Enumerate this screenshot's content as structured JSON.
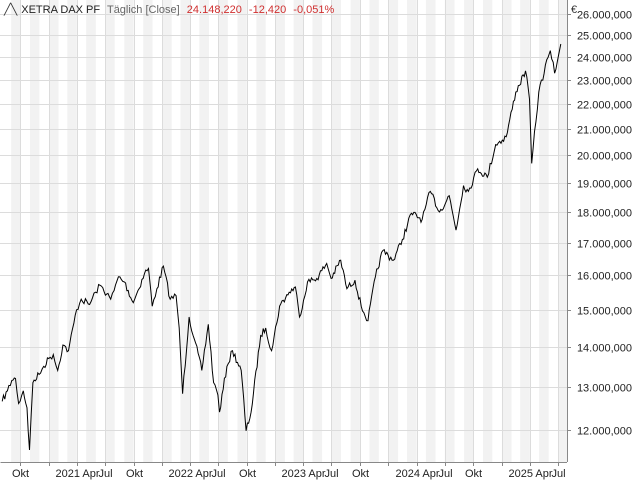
{
  "header": {
    "name": "XETRA DAX PF",
    "interval": "Täglich [Close]",
    "last": "24.148,220",
    "change": "-12,420",
    "change_pct": "-0,051%",
    "change_color": "#d03030"
  },
  "chart_data": {
    "type": "line",
    "currency": "€",
    "x_tick_labels": [
      "Okt",
      "2021 Apr",
      "Jul",
      "Okt",
      "2022 Apr",
      "Jul",
      "Okt",
      "2023 Apr",
      "Jul",
      "Okt",
      "2024 Apr",
      "Jul",
      "Okt",
      "2025 Apr",
      "Jul"
    ],
    "y_tick_labels": [
      "12.000,000",
      "13.000,000",
      "14.000,000",
      "15.000,000",
      "16.000,000",
      "17.000,000",
      "18.000,000",
      "19.000,000",
      "20.000,000",
      "21.000,000",
      "22.000,000",
      "23.000,000",
      "24.000,000",
      "25.000,000",
      "26.000,000"
    ],
    "y_ticks": [
      12000,
      13000,
      14000,
      15000,
      16000,
      17000,
      18000,
      19000,
      20000,
      21000,
      22000,
      23000,
      24000,
      25000,
      26000
    ],
    "ylim": [
      11300,
      26700
    ],
    "y_scale": "log",
    "grid": true,
    "series": [
      {
        "color": "#000000",
        "points": [
          [
            "2020-08-03",
            12650
          ],
          [
            "2020-08-20",
            12900
          ],
          [
            "2020-09-03",
            13150
          ],
          [
            "2020-09-15",
            13200
          ],
          [
            "2020-09-25",
            12600
          ],
          [
            "2020-10-10",
            12900
          ],
          [
            "2020-10-22",
            12500
          ],
          [
            "2020-10-30",
            11556
          ],
          [
            "2020-11-10",
            13100
          ],
          [
            "2020-11-30",
            13300
          ],
          [
            "2020-12-15",
            13500
          ],
          [
            "2020-12-31",
            13700
          ],
          [
            "2021-01-15",
            13800
          ],
          [
            "2021-01-29",
            13400
          ],
          [
            "2021-02-15",
            14050
          ],
          [
            "2021-03-05",
            13900
          ],
          [
            "2021-03-31",
            15000
          ],
          [
            "2021-04-15",
            15300
          ],
          [
            "2021-05-12",
            15150
          ],
          [
            "2021-05-31",
            15500
          ],
          [
            "2021-06-15",
            15700
          ],
          [
            "2021-07-19",
            15300
          ],
          [
            "2021-07-30",
            15550
          ],
          [
            "2021-08-13",
            15950
          ],
          [
            "2021-09-01",
            15800
          ],
          [
            "2021-09-30",
            15200
          ],
          [
            "2021-10-15",
            15550
          ],
          [
            "2021-11-05",
            16050
          ],
          [
            "2021-11-18",
            16200
          ],
          [
            "2021-11-30",
            15100
          ],
          [
            "2021-12-15",
            15600
          ],
          [
            "2022-01-05",
            16271
          ],
          [
            "2022-01-27",
            15300
          ],
          [
            "2022-02-15",
            15400
          ],
          [
            "2022-02-25",
            14500
          ],
          [
            "2022-03-08",
            12832
          ],
          [
            "2022-03-29",
            14800
          ],
          [
            "2022-04-15",
            14200
          ],
          [
            "2022-05-09",
            13400
          ],
          [
            "2022-05-30",
            14600
          ],
          [
            "2022-06-16",
            13100
          ],
          [
            "2022-06-30",
            12800
          ],
          [
            "2022-07-05",
            12400
          ],
          [
            "2022-07-29",
            13500
          ],
          [
            "2022-08-16",
            13900
          ],
          [
            "2022-09-13",
            13400
          ],
          [
            "2022-09-29",
            11976
          ],
          [
            "2022-10-15",
            12400
          ],
          [
            "2022-11-15",
            14300
          ],
          [
            "2022-12-01",
            14500
          ],
          [
            "2022-12-20",
            13900
          ],
          [
            "2023-01-15",
            15100
          ],
          [
            "2023-02-15",
            15500
          ],
          [
            "2023-03-07",
            15650
          ],
          [
            "2023-03-20",
            14800
          ],
          [
            "2023-04-15",
            15800
          ],
          [
            "2023-05-15",
            15900
          ],
          [
            "2023-06-16",
            16350
          ],
          [
            "2023-06-30",
            15900
          ],
          [
            "2023-07-31",
            16450
          ],
          [
            "2023-08-20",
            15600
          ],
          [
            "2023-09-15",
            15850
          ],
          [
            "2023-10-05",
            15100
          ],
          [
            "2023-10-27",
            14700
          ],
          [
            "2023-11-20",
            15950
          ],
          [
            "2023-12-14",
            16750
          ],
          [
            "2024-01-17",
            16450
          ],
          [
            "2024-02-15",
            17100
          ],
          [
            "2024-03-15",
            17950
          ],
          [
            "2024-04-19",
            17750
          ],
          [
            "2024-05-15",
            18700
          ],
          [
            "2024-06-14",
            18000
          ],
          [
            "2024-07-15",
            18550
          ],
          [
            "2024-08-06",
            17400
          ],
          [
            "2024-08-30",
            18900
          ],
          [
            "2024-09-15",
            18700
          ],
          [
            "2024-10-15",
            19500
          ],
          [
            "2024-11-15",
            19200
          ],
          [
            "2024-12-12",
            20400
          ],
          [
            "2025-01-15",
            20700
          ],
          [
            "2025-02-15",
            22500
          ],
          [
            "2025-03-18",
            23400
          ],
          [
            "2025-03-31",
            22200
          ],
          [
            "2025-04-07",
            19700
          ],
          [
            "2025-04-30",
            22500
          ],
          [
            "2025-05-30",
            24000
          ],
          [
            "2025-06-06",
            24300
          ],
          [
            "2025-06-20",
            23300
          ],
          [
            "2025-07-03",
            24100
          ],
          [
            "2025-07-10",
            24600
          ]
        ]
      }
    ]
  }
}
